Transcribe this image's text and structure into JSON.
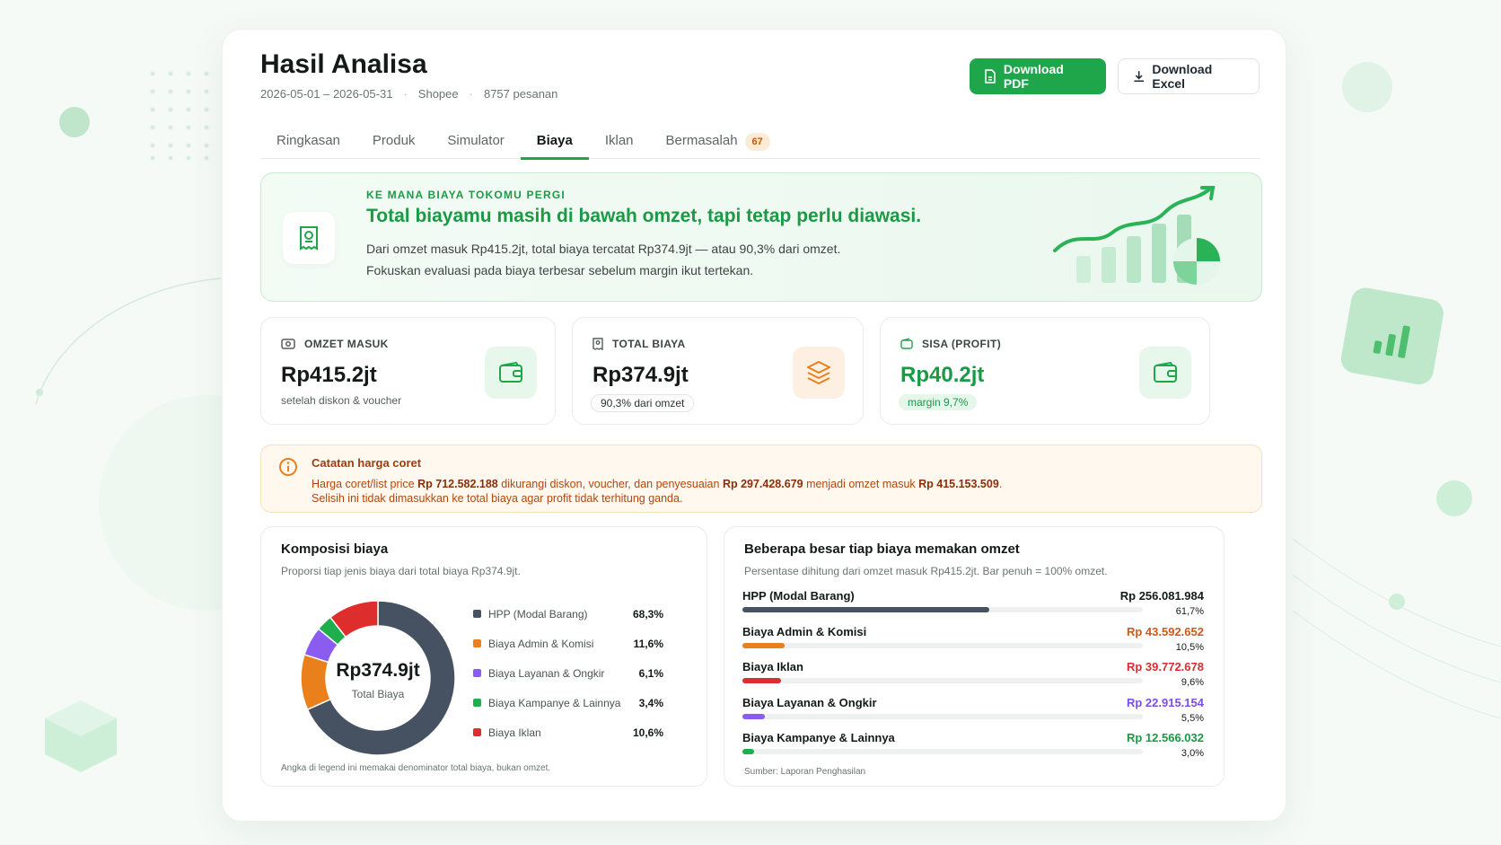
{
  "header": {
    "title": "Hasil Analisa",
    "date_range": "2026-05-01 – 2026-05-31",
    "platform": "Shopee",
    "orders": "8757 pesanan",
    "btn_pdf": "Download PDF",
    "btn_excel": "Download Excel"
  },
  "tabs": [
    {
      "label": "Ringkasan"
    },
    {
      "label": "Produk"
    },
    {
      "label": "Simulator"
    },
    {
      "label": "Biaya"
    },
    {
      "label": "Iklan"
    },
    {
      "label": "Bermasalah",
      "badge": "67"
    }
  ],
  "hero": {
    "kicker": "KE MANA BIAYA TOKOMU PERGI",
    "headline": "Total biayamu masih di bawah omzet, tapi tetap perlu diawasi.",
    "line1": "Dari omzet masuk Rp415.2jt, total biaya tercatat Rp374.9jt — atau 90,3% dari omzet.",
    "line2": "Fokuskan evaluasi pada biaya terbesar sebelum margin ikut tertekan."
  },
  "stats": {
    "omzet": {
      "label": "OMZET MASUK",
      "value": "Rp415.2jt",
      "sub": "setelah diskon & voucher"
    },
    "biaya": {
      "label": "TOTAL BIAYA",
      "value": "Rp374.9jt",
      "sub": "90,3% dari omzet"
    },
    "profit": {
      "label": "SISA (PROFIT)",
      "value": "Rp40.2jt",
      "sub": "margin 9,7%"
    }
  },
  "note": {
    "title": "Catatan harga coret",
    "p1_a": "Harga coret/list price ",
    "p1_b": "Rp 712.582.188",
    "p1_c": " dikurangi diskon, voucher, dan penyesuaian ",
    "p1_d": "Rp 297.428.679",
    "p1_e": " menjadi omzet masuk ",
    "p1_f": "Rp 415.153.509",
    "p1_g": ".",
    "p2": "Selisih ini tidak dimasukkan ke total biaya agar profit tidak terhitung ganda."
  },
  "composition": {
    "title": "Komposisi biaya",
    "subtitle": "Proporsi tiap jenis biaya dari total biaya Rp374.9jt.",
    "center_value": "Rp374.9jt",
    "center_label": "Total Biaya",
    "footnote": "Angka di legend ini memakai denominator total biaya, bukan omzet.",
    "items": [
      {
        "name": "HPP (Modal Barang)",
        "pct": "68,3%",
        "value": 68.3,
        "color": "#465262"
      },
      {
        "name": "Biaya Admin & Komisi",
        "pct": "11,6%",
        "value": 11.6,
        "color": "#e9801c"
      },
      {
        "name": "Biaya Layanan & Ongkir",
        "pct": "6,1%",
        "value": 6.1,
        "color": "#8b5cf0"
      },
      {
        "name": "Biaya Kampanye & Lainnya",
        "pct": "3,4%",
        "value": 3.4,
        "color": "#1fae4c"
      },
      {
        "name": "Biaya Iklan",
        "pct": "10,6%",
        "value": 10.6,
        "color": "#dd2d2d"
      }
    ]
  },
  "chart_data": {
    "type": "pie",
    "title": "Komposisi biaya",
    "categories": [
      "HPP (Modal Barang)",
      "Biaya Admin & Komisi",
      "Biaya Layanan & Ongkir",
      "Biaya Kampanye & Lainnya",
      "Biaya Iklan"
    ],
    "values": [
      68.3,
      11.6,
      6.1,
      3.4,
      10.6
    ]
  },
  "omzet_share": {
    "title": "Beberapa besar tiap biaya memakan omzet",
    "subtitle": "Persentase dihitung dari omzet masuk Rp415.2jt. Bar penuh = 100% omzet.",
    "source": "Sumber: Laporan Penghasilan",
    "rows": [
      {
        "name": "HPP (Modal Barang)",
        "amount": "Rp 256.081.984",
        "pct_label": "61,7%",
        "pct": 61.7,
        "color": "#465262",
        "amount_color": "#141a17"
      },
      {
        "name": "Biaya Admin & Komisi",
        "amount": "Rp 43.592.652",
        "pct_label": "10,5%",
        "pct": 10.5,
        "color": "#e9801c",
        "amount_color": "#d2571b"
      },
      {
        "name": "Biaya Iklan",
        "amount": "Rp 39.772.678",
        "pct_label": "9,6%",
        "pct": 9.6,
        "color": "#dd2d2d",
        "amount_color": "#d43030"
      },
      {
        "name": "Biaya Layanan & Ongkir",
        "amount": "Rp 22.915.154",
        "pct_label": "5,5%",
        "pct": 5.5,
        "color": "#8b5cf0",
        "amount_color": "#7c4de8"
      },
      {
        "name": "Biaya Kampanye & Lainnya",
        "amount": "Rp 12.566.032",
        "pct_label": "3,0%",
        "pct": 3.0,
        "color": "#1fae4c",
        "amount_color": "#1a9a45"
      }
    ]
  }
}
